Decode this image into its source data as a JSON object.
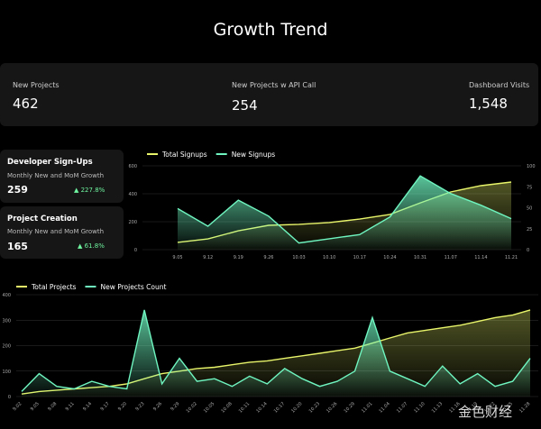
{
  "header": {
    "title": "Growth Trend"
  },
  "kpis": [
    {
      "label": "New Projects",
      "value": "462"
    },
    {
      "label": "New Projects w API Call",
      "value": "254"
    },
    {
      "label": "Dashboard Visits",
      "value": "1,548"
    }
  ],
  "cards": [
    {
      "title": "Developer Sign-Ups",
      "subtitle": "Monthly New and MoM Growth",
      "value": "259",
      "growth": "▲ 227.8%"
    },
    {
      "title": "Project Creation",
      "subtitle": "Monthly New and MoM Growth",
      "value": "165",
      "growth": "▲ 61.8%"
    }
  ],
  "watermark": "金色财经",
  "chart_data": [
    {
      "type": "line",
      "categories": [
        "9.05",
        "9.12",
        "9.19",
        "9.26",
        "10.03",
        "10.10",
        "10.17",
        "10.24",
        "10.31",
        "11.07",
        "11.14",
        "11.21"
      ],
      "series": [
        {
          "name": "Total Signups",
          "color": "#e8f56a",
          "values": [
            52,
            77,
            135,
            174,
            181,
            194,
            219,
            252,
            335,
            413,
            458,
            484
          ]
        },
        {
          "name": "New Signups",
          "color": "#6ff5c0",
          "axis": "y2",
          "values": [
            49,
            28,
            59,
            40,
            8,
            13,
            18,
            39,
            88,
            67,
            53,
            37
          ]
        }
      ],
      "ylim": [
        0,
        600
      ],
      "yticks": [
        0,
        200,
        400,
        600
      ],
      "y2lim": [
        0,
        100
      ],
      "y2ticks": [
        0,
        25,
        50,
        75,
        100
      ],
      "grid": true
    },
    {
      "type": "line",
      "categories": [
        "9.02",
        "9.05",
        "9.08",
        "9.11",
        "9.14",
        "9.17",
        "9.20",
        "9.23",
        "9.26",
        "9.29",
        "10.02",
        "10.05",
        "10.08",
        "10.11",
        "10.14",
        "10.17",
        "10.20",
        "10.23",
        "10.26",
        "10.29",
        "11.01",
        "11.04",
        "11.07",
        "11.10",
        "11.13",
        "11.16",
        "11.19",
        "11.22",
        "11.25",
        "11.28"
      ],
      "series": [
        {
          "name": "Total Projects",
          "color": "#e8f56a",
          "values": [
            10,
            20,
            25,
            30,
            35,
            40,
            50,
            70,
            90,
            100,
            110,
            115,
            125,
            135,
            140,
            150,
            160,
            170,
            180,
            190,
            210,
            230,
            250,
            260,
            270,
            280,
            295,
            310,
            320,
            340
          ]
        },
        {
          "name": "New Projects Count",
          "color": "#6ff5c0",
          "values": [
            20,
            90,
            40,
            30,
            60,
            40,
            30,
            340,
            50,
            150,
            60,
            70,
            40,
            80,
            50,
            110,
            70,
            40,
            60,
            100,
            310,
            100,
            70,
            40,
            120,
            50,
            90,
            40,
            60,
            150
          ]
        }
      ],
      "ylim": [
        0,
        400
      ],
      "yticks": [
        0,
        100,
        200,
        300,
        400
      ],
      "grid": true
    }
  ]
}
